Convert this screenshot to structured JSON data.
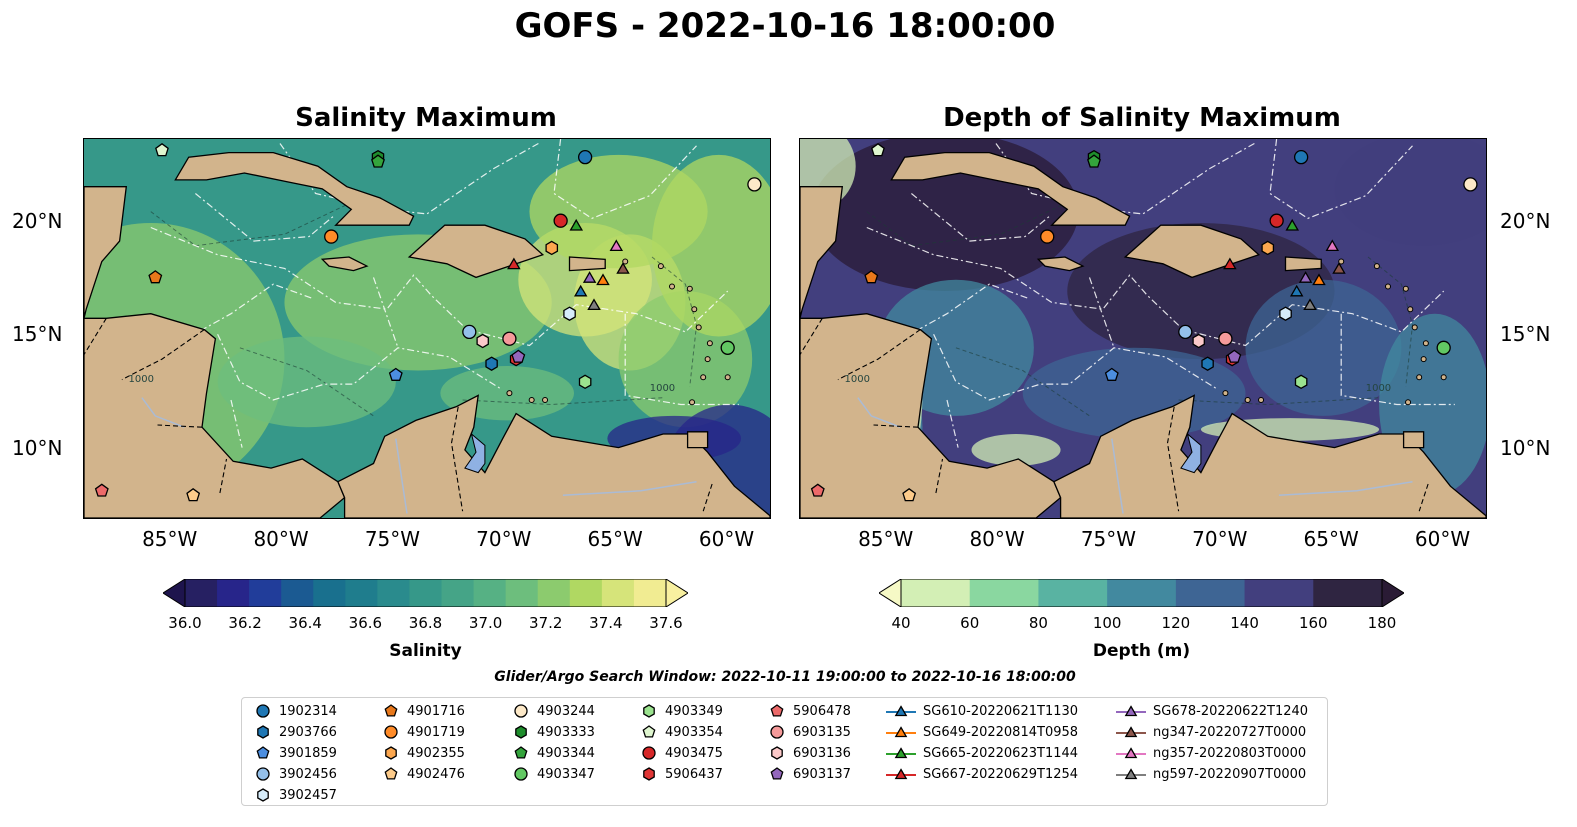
{
  "figure": {
    "title": "GOFS - 2022-10-16 18:00:00",
    "search_window": "Glider/Argo Search Window: 2022-10-11 19:00:00 to 2022-10-16 18:00:00"
  },
  "panels": [
    {
      "title": "Salinity Maximum",
      "colorbar": {
        "label": "Salinity",
        "ticks": [
          "36.0",
          "36.2",
          "36.4",
          "36.6",
          "36.8",
          "37.0",
          "37.2",
          "37.4",
          "37.6"
        ],
        "colors": [
          "#262062",
          "#27258a",
          "#213d9a",
          "#1b5a92",
          "#19708e",
          "#1f7d8d",
          "#2a8b8d",
          "#369889",
          "#45a487",
          "#56b184",
          "#6dbe7d",
          "#8ccb6e",
          "#b0d862",
          "#d6e47a",
          "#f1ec92"
        ]
      },
      "x_ticks": [
        "85°W",
        "80°W",
        "75°W",
        "70°W",
        "65°W",
        "60°W"
      ],
      "y_ticks": [
        "20°N",
        "15°N",
        "10°N"
      ]
    },
    {
      "title": "Depth of Salinity Maximum",
      "colorbar": {
        "label": "Depth (m)",
        "ticks": [
          "40",
          "60",
          "80",
          "100",
          "120",
          "140",
          "160",
          "180"
        ],
        "colors": [
          "#f6f9c6",
          "#d3efb5",
          "#8ad7a0",
          "#59b3a2",
          "#42899f",
          "#3e6594",
          "#423f7e",
          "#2f2541",
          "#2a1b35"
        ]
      },
      "x_ticks": [
        "85°W",
        "80°W",
        "75°W",
        "70°W",
        "65°W",
        "60°W"
      ],
      "y_ticks": [
        "20°N",
        "15°N",
        "10°N"
      ]
    }
  ],
  "map_labels": {
    "contours": [
      "1000",
      "1000"
    ]
  },
  "colors": {
    "land": "#d2b48c",
    "lake": "#8fb1e3",
    "river": "#aabbd5",
    "eez_line": "#ffffff"
  },
  "legend": [
    {
      "label": "1902314",
      "marker": "circle",
      "color": "#1f77b4"
    },
    {
      "label": "2903766",
      "marker": "hexagon",
      "color": "#1f77b4"
    },
    {
      "label": "3901859",
      "marker": "pentagon",
      "color": "#4c8ee0"
    },
    {
      "label": "3902456",
      "marker": "circle",
      "color": "#94c0ea"
    },
    {
      "label": "3902457",
      "marker": "hexagon",
      "color": "#d6ecfa"
    },
    {
      "label": "4901716",
      "marker": "pentagon",
      "color": "#e8781b"
    },
    {
      "label": "4901719",
      "marker": "circle",
      "color": "#ff8b28"
    },
    {
      "label": "4902355",
      "marker": "hexagon",
      "color": "#fca74f"
    },
    {
      "label": "4902476",
      "marker": "pentagon",
      "color": "#fdcb8a"
    },
    {
      "label": "4903244",
      "marker": "circle",
      "color": "#fde9c8"
    },
    {
      "label": "4903333",
      "marker": "hexagon",
      "color": "#1e8d2c"
    },
    {
      "label": "4903344",
      "marker": "pentagon",
      "color": "#34a43c"
    },
    {
      "label": "4903347",
      "marker": "circle",
      "color": "#62c863"
    },
    {
      "label": "4903349",
      "marker": "hexagon",
      "color": "#9be38f"
    },
    {
      "label": "4903354",
      "marker": "pentagon",
      "color": "#dff6cf"
    },
    {
      "label": "4903475",
      "marker": "circle",
      "color": "#d62728"
    },
    {
      "label": "5906437",
      "marker": "hexagon",
      "color": "#e03636"
    },
    {
      "label": "5906478",
      "marker": "pentagon",
      "color": "#ec6a6a"
    },
    {
      "label": "6903135",
      "marker": "circle",
      "color": "#f59a9a"
    },
    {
      "label": "6903136",
      "marker": "hexagon",
      "color": "#fbc9c9"
    },
    {
      "label": "6903137",
      "marker": "pentagon",
      "color": "#9467bd"
    },
    {
      "label": "SG610-20220621T1130",
      "marker": "triangle-line",
      "color": "#1f77b4"
    },
    {
      "label": "SG649-20220814T0958",
      "marker": "triangle-line",
      "color": "#ff7f0e"
    },
    {
      "label": "SG665-20220623T1144",
      "marker": "triangle-line",
      "color": "#2ca02c"
    },
    {
      "label": "SG667-20220629T1254",
      "marker": "triangle-line",
      "color": "#d62728"
    },
    {
      "label": "SG678-20220622T1240",
      "marker": "triangle-line",
      "color": "#9467bd"
    },
    {
      "label": "ng347-20220727T0000",
      "marker": "triangle-line",
      "color": "#8c564b"
    },
    {
      "label": "ng357-20220803T0000",
      "marker": "triangle-line",
      "color": "#e377c2"
    },
    {
      "label": "ng597-20220907T0000",
      "marker": "triangle-line",
      "color": "#7f7f7f"
    }
  ],
  "platforms": [
    {
      "id": "1902314",
      "lon": -66.5,
      "lat": 22.9
    },
    {
      "id": "2903766",
      "lon": -70.7,
      "lat": 13.8
    },
    {
      "id": "3901859",
      "lon": -75.0,
      "lat": 13.3
    },
    {
      "id": "3902456",
      "lon": -71.7,
      "lat": 15.2
    },
    {
      "id": "3902457",
      "lon": -67.2,
      "lat": 16.0
    },
    {
      "id": "4901716",
      "lon": -85.8,
      "lat": 17.6
    },
    {
      "id": "4901719",
      "lon": -77.9,
      "lat": 19.4
    },
    {
      "id": "4902355",
      "lon": -68.0,
      "lat": 18.9
    },
    {
      "id": "4902476",
      "lon": -84.1,
      "lat": 8.0
    },
    {
      "id": "4903244",
      "lon": -58.9,
      "lat": 21.7
    },
    {
      "id": "4903333",
      "lon": -75.8,
      "lat": 22.9
    },
    {
      "id": "4903344",
      "lon": -75.8,
      "lat": 22.7
    },
    {
      "id": "4903347",
      "lon": -60.1,
      "lat": 14.5
    },
    {
      "id": "4903349",
      "lon": -66.5,
      "lat": 13.0
    },
    {
      "id": "4903354",
      "lon": -85.5,
      "lat": 23.2
    },
    {
      "id": "4903475",
      "lon": -67.6,
      "lat": 20.1
    },
    {
      "id": "5906437",
      "lon": -69.6,
      "lat": 14.0
    },
    {
      "id": "5906478",
      "lon": -88.2,
      "lat": 8.2
    },
    {
      "id": "6903135",
      "lon": -69.9,
      "lat": 14.9
    },
    {
      "id": "6903136",
      "lon": -71.1,
      "lat": 14.8
    },
    {
      "id": "6903137",
      "lon": -69.5,
      "lat": 14.1
    },
    {
      "id": "SG610-20220621T1130",
      "lon": -66.7,
      "lat": 17.0
    },
    {
      "id": "SG649-20220814T0958",
      "lon": -65.7,
      "lat": 17.5
    },
    {
      "id": "SG665-20220623T1144",
      "lon": -66.9,
      "lat": 19.9
    },
    {
      "id": "SG667-20220629T1254",
      "lon": -69.7,
      "lat": 18.2
    },
    {
      "id": "SG678-20220622T1240",
      "lon": -66.3,
      "lat": 17.6
    },
    {
      "id": "ng347-20220727T0000",
      "lon": -64.8,
      "lat": 18.0
    },
    {
      "id": "ng357-20220803T0000",
      "lon": -65.1,
      "lat": 19.0
    },
    {
      "id": "ng597-20220907T0000",
      "lon": -66.1,
      "lat": 16.4
    }
  ]
}
